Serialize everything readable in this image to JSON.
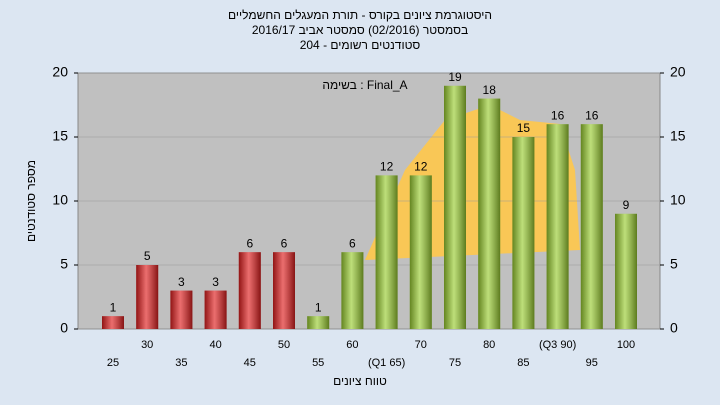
{
  "chart_data": {
    "type": "bar",
    "title": "היסטוגרמת ציונים בקורס - תורת המעגלים החשמליים",
    "subtitle": [
      "בסמסטר  (02/2016)  סמסטר אביב 2016/17",
      "סטודנטים רשומים - 204"
    ],
    "annotation": "בשימה : Final_A",
    "x_label": "טווח ציונים",
    "y_label": "מספר סטודנטים",
    "categories": [
      "25",
      "30",
      "35",
      "40",
      "45",
      "50",
      "55",
      "60",
      "(Q1 65)",
      "70",
      "75",
      "80",
      "85",
      "(Q3 90)",
      "95",
      "100"
    ],
    "values": [
      1,
      5,
      3,
      3,
      6,
      6,
      1,
      6,
      12,
      12,
      19,
      18,
      15,
      16,
      16,
      9
    ],
    "colors": [
      "#e02020",
      "#e02020",
      "#e02020",
      "#e02020",
      "#e02020",
      "#e02020",
      "#9acd32",
      "#9acd32",
      "#9acd32",
      "#9acd32",
      "#9acd32",
      "#9acd32",
      "#9acd32",
      "#9acd32",
      "#9acd32",
      "#9acd32"
    ],
    "ylim": [
      0,
      20
    ],
    "yticks": [
      0,
      5,
      10,
      15,
      20
    ],
    "grid": true
  }
}
